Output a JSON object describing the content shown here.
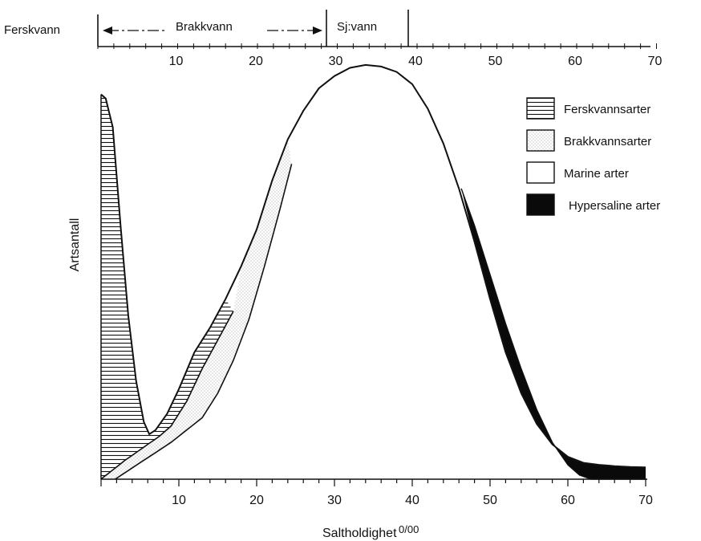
{
  "chart_data": {
    "type": "area",
    "title": "",
    "xlabel": "Saltholdighet",
    "xlabel_unit": "0/00",
    "ylabel": "Artsantall",
    "xlim": [
      0,
      70
    ],
    "ylim": [
      0,
      100
    ],
    "x_ticks": [
      10,
      20,
      30,
      40,
      50,
      60,
      70
    ],
    "top_ticks": [
      10,
      20,
      30,
      40,
      50,
      60,
      70
    ],
    "zones": [
      {
        "name": "Ferskvann",
        "range": [
          null,
          0
        ]
      },
      {
        "name": "Brakkvann",
        "range": [
          0,
          30
        ]
      },
      {
        "name": "Sjøvann",
        "display": "Sj:vann",
        "range": [
          30,
          40
        ]
      }
    ],
    "legend": {
      "position": "top-right",
      "entries": [
        {
          "label": "Ferskvannsarter",
          "fill": "hatch"
        },
        {
          "label": "Brakkvannsarter",
          "fill": "stipple"
        },
        {
          "label": "Marine arter",
          "fill": "white"
        },
        {
          "label": "Hypersaline arter",
          "fill": "black"
        }
      ]
    },
    "curves": {
      "outer_total": {
        "x": [
          0,
          0.6,
          1.5,
          2.5,
          3.5,
          4.5,
          5.5,
          6.2,
          7,
          8.5,
          10,
          12,
          14,
          16,
          18,
          20,
          22,
          24,
          26,
          28,
          30,
          32,
          34,
          36,
          38,
          40,
          42,
          44,
          46,
          48,
          50,
          52,
          54,
          56,
          58,
          60,
          62,
          64,
          66,
          68,
          70
        ],
        "y": [
          94,
          93,
          86,
          62,
          40,
          24,
          14,
          11,
          12,
          16,
          22,
          31,
          37,
          44,
          52,
          61,
          73,
          83,
          90,
          95.5,
          98.5,
          100.5,
          101.2,
          100.8,
          99.5,
          96.5,
          90.5,
          82,
          71,
          58,
          44,
          31,
          21,
          13.5,
          8.5,
          5.5,
          4,
          3.5,
          3.2,
          3,
          2.9
        ]
      },
      "fresh_boundary": {
        "x": [
          0,
          0.3,
          1,
          2,
          3,
          4.5,
          6,
          7.5,
          9,
          11,
          13,
          15,
          17
        ],
        "y": [
          0,
          0.5,
          1.5,
          3,
          4.5,
          6.5,
          8.5,
          10.5,
          13,
          19,
          27,
          34,
          41
        ]
      },
      "brackish_boundary": {
        "x": [
          1.8,
          3,
          5,
          7,
          9,
          11,
          13,
          15,
          17,
          19,
          21,
          23,
          24.5
        ],
        "y": [
          0,
          1.5,
          4,
          6.5,
          9,
          12,
          15,
          21,
          29,
          39,
          52,
          66,
          77
        ]
      },
      "hypersaline_boundary": {
        "x": [
          46.3,
          48,
          50,
          52,
          54,
          56,
          58,
          60,
          61.5,
          63,
          65,
          67,
          70
        ],
        "y": [
          71,
          62,
          50,
          38,
          27,
          17,
          9,
          3.5,
          1,
          0,
          0,
          0,
          0
        ]
      }
    }
  }
}
